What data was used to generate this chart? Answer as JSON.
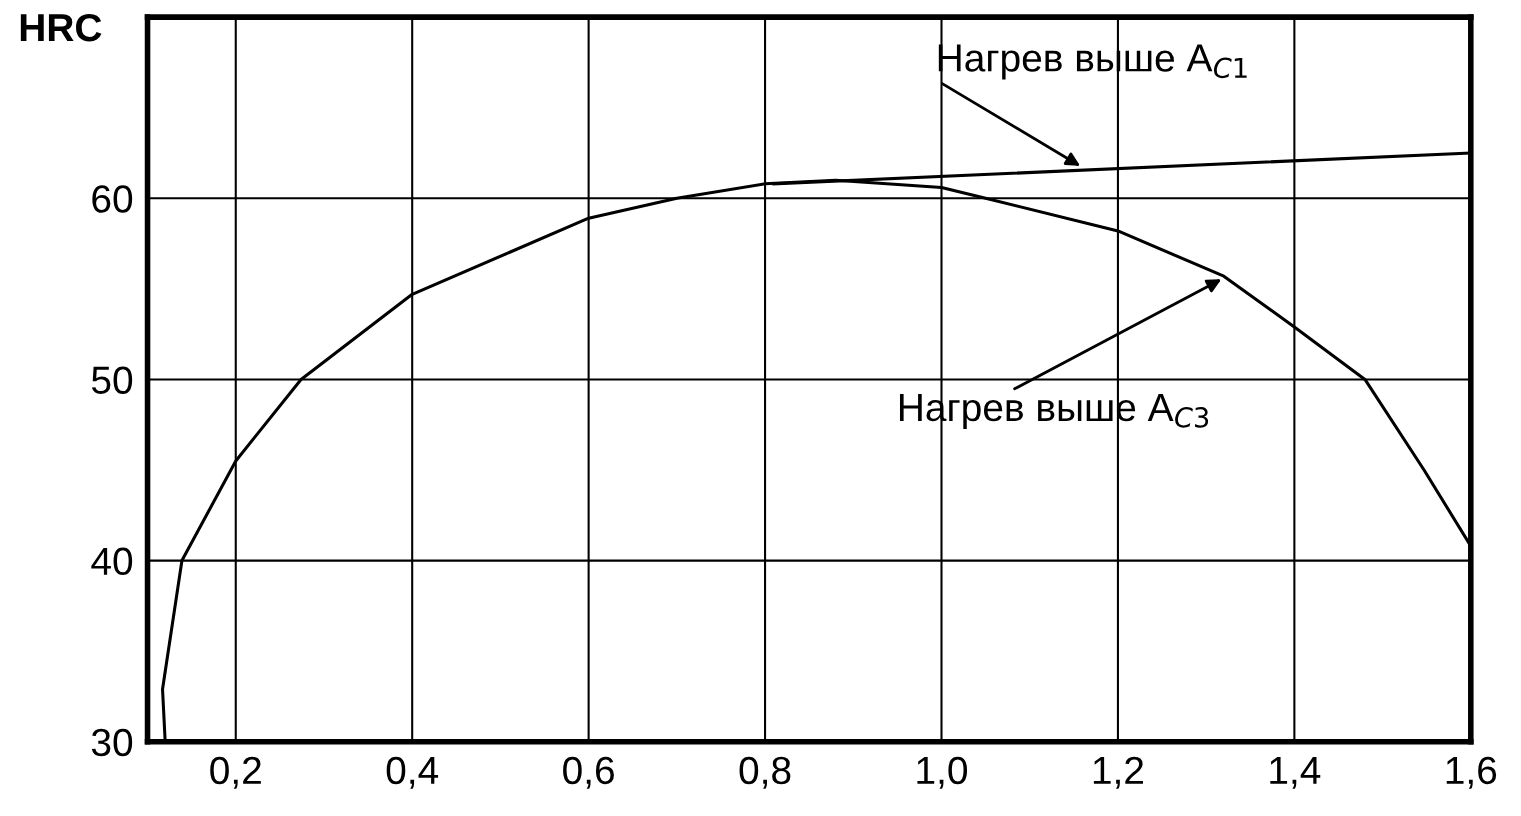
{
  "chart_data": {
    "type": "line",
    "ylabel": "HRC",
    "series": [
      {
        "color": "#000000",
        "x": [
          0.12,
          0.117,
          0.139,
          0.2,
          0.274,
          0.4,
          0.6,
          0.7,
          0.8,
          0.88,
          1.0,
          1.05,
          1.2,
          1.32,
          1.4,
          1.48,
          1.547,
          1.6
        ],
        "values": [
          30,
          32.9,
          40,
          45.5,
          50,
          54.7,
          58.9,
          60,
          60.8,
          61,
          60.6,
          60,
          58.2,
          55.7,
          52.9,
          50,
          45,
          40.8
        ]
      },
      {
        "color": "#000000",
        "x": [
          0.81,
          1.6
        ],
        "values": [
          60.8,
          62.5
        ]
      }
    ],
    "annotations": [
      {
        "text": "Нагрев выше A$_{C1}$",
        "x": 1.16,
        "y": 61.7
      },
      {
        "text": "Нагрев выше A$_{C3}$",
        "x": 1.32,
        "y": 55.6
      }
    ],
    "xlim": [
      0.1,
      1.6
    ],
    "ylim": [
      30,
      70
    ],
    "xticks": [
      {
        "value": 0.2,
        "label": "0,2"
      },
      {
        "value": 0.4,
        "label": "0,4"
      },
      {
        "value": 0.6,
        "label": "0,6"
      },
      {
        "value": 0.8,
        "label": "0,8"
      },
      {
        "value": 1.0,
        "label": "1,0"
      },
      {
        "value": 1.2,
        "label": "1,2"
      },
      {
        "value": 1.4,
        "label": "1,4"
      },
      {
        "value": 1.6,
        "label": "1,6"
      }
    ],
    "yticks": [
      30,
      40,
      50,
      60,
      {
        "value": 70,
        "label": null
      }
    ],
    "grid": true,
    "marker": "none",
    "line_style": "solid",
    "legend": false
  }
}
